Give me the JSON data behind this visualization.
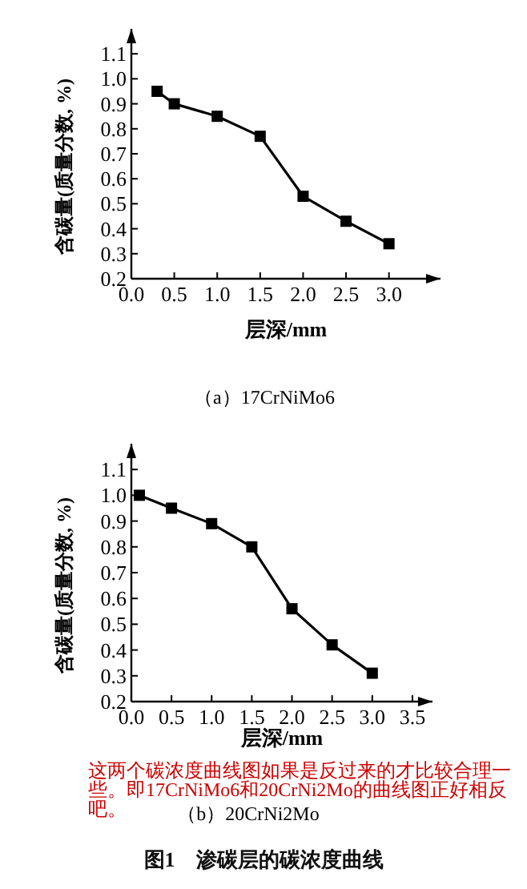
{
  "chart_data": [
    {
      "type": "line",
      "title": "（a）17CrNiMo6",
      "xlabel": "层深/mm",
      "ylabel": "含碳量(质量分数, %)",
      "marker": "square",
      "line_style": "solid",
      "xlim": [
        0,
        3.6
      ],
      "ylim": [
        0.2,
        1.2
      ],
      "xticks": [
        {
          "value": 0,
          "label": "0.0"
        },
        0.5,
        {
          "value": 1,
          "label": "1.0"
        },
        1.5,
        {
          "value": 2,
          "label": "2.0"
        },
        2.5,
        {
          "value": 3,
          "label": "3.0"
        }
      ],
      "yticks": [
        0.2,
        0.3,
        0.4,
        0.5,
        0.6,
        0.7,
        0.8,
        0.9,
        {
          "value": 1,
          "label": "1.0"
        },
        1.1
      ],
      "series": [
        {
          "color": "#000000",
          "x": [
            0.3,
            0.5,
            1.0,
            1.5,
            2.0,
            2.5,
            3.0
          ],
          "values": [
            0.95,
            0.9,
            0.85,
            0.77,
            0.53,
            0.43,
            0.34
          ]
        }
      ]
    },
    {
      "type": "line",
      "title": "（b）20CrNi2Mo",
      "xlabel": "层深/mm",
      "ylabel": "含碳量(质量分数, %)",
      "marker": "square",
      "line_style": "solid",
      "xlim": [
        0,
        3.75
      ],
      "ylim": [
        0.2,
        1.2
      ],
      "xticks": [
        {
          "value": 0,
          "label": "0.0"
        },
        0.5,
        {
          "value": 1,
          "label": "1.0"
        },
        1.5,
        {
          "value": 2,
          "label": "2.0"
        },
        2.5,
        {
          "value": 3,
          "label": "3.0"
        },
        3.5
      ],
      "yticks": [
        0.2,
        0.3,
        0.4,
        0.5,
        0.6,
        0.7,
        0.8,
        0.9,
        {
          "value": 1,
          "label": "1.0"
        },
        1.1
      ],
      "series": [
        {
          "color": "#000000",
          "x": [
            0.1,
            0.5,
            1.0,
            1.5,
            2.0,
            2.5,
            3.0
          ],
          "values": [
            1.0,
            0.95,
            0.89,
            0.8,
            0.56,
            0.42,
            0.31
          ]
        }
      ],
      "annotations": [
        "这两个碳浓度曲线图如果是反过来的才比较合理一些。即17CrNiMo6和20CrNi2Mo的曲线图正好相反吧。",
        "图1　渗碳层的碳浓度曲线"
      ]
    }
  ]
}
